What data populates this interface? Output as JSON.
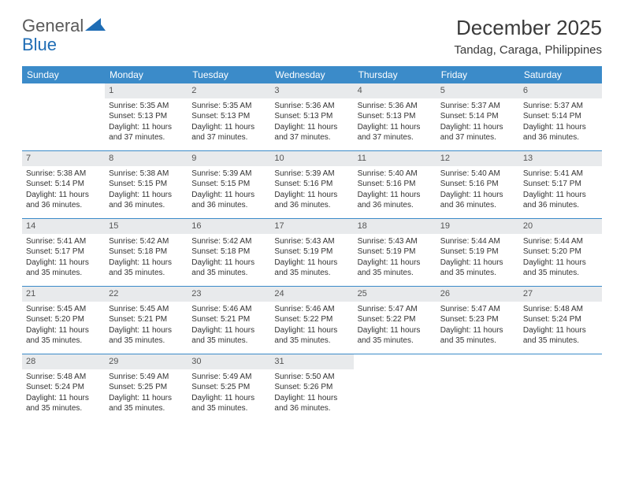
{
  "logo": {
    "text_left": "General",
    "text_right": "Blue"
  },
  "title": "December 2025",
  "location": "Tandag, Caraga, Philippines",
  "header_bg": "#3b8bc9",
  "header_fg": "#ffffff",
  "daynum_bg": "#e8eaec",
  "border_color": "#3b8bc9",
  "weekdays": [
    "Sunday",
    "Monday",
    "Tuesday",
    "Wednesday",
    "Thursday",
    "Friday",
    "Saturday"
  ],
  "start_offset": 1,
  "days": [
    {
      "n": 1,
      "sunrise": "5:35 AM",
      "sunset": "5:13 PM",
      "daylight": "11 hours and 37 minutes."
    },
    {
      "n": 2,
      "sunrise": "5:35 AM",
      "sunset": "5:13 PM",
      "daylight": "11 hours and 37 minutes."
    },
    {
      "n": 3,
      "sunrise": "5:36 AM",
      "sunset": "5:13 PM",
      "daylight": "11 hours and 37 minutes."
    },
    {
      "n": 4,
      "sunrise": "5:36 AM",
      "sunset": "5:13 PM",
      "daylight": "11 hours and 37 minutes."
    },
    {
      "n": 5,
      "sunrise": "5:37 AM",
      "sunset": "5:14 PM",
      "daylight": "11 hours and 37 minutes."
    },
    {
      "n": 6,
      "sunrise": "5:37 AM",
      "sunset": "5:14 PM",
      "daylight": "11 hours and 36 minutes."
    },
    {
      "n": 7,
      "sunrise": "5:38 AM",
      "sunset": "5:14 PM",
      "daylight": "11 hours and 36 minutes."
    },
    {
      "n": 8,
      "sunrise": "5:38 AM",
      "sunset": "5:15 PM",
      "daylight": "11 hours and 36 minutes."
    },
    {
      "n": 9,
      "sunrise": "5:39 AM",
      "sunset": "5:15 PM",
      "daylight": "11 hours and 36 minutes."
    },
    {
      "n": 10,
      "sunrise": "5:39 AM",
      "sunset": "5:16 PM",
      "daylight": "11 hours and 36 minutes."
    },
    {
      "n": 11,
      "sunrise": "5:40 AM",
      "sunset": "5:16 PM",
      "daylight": "11 hours and 36 minutes."
    },
    {
      "n": 12,
      "sunrise": "5:40 AM",
      "sunset": "5:16 PM",
      "daylight": "11 hours and 36 minutes."
    },
    {
      "n": 13,
      "sunrise": "5:41 AM",
      "sunset": "5:17 PM",
      "daylight": "11 hours and 36 minutes."
    },
    {
      "n": 14,
      "sunrise": "5:41 AM",
      "sunset": "5:17 PM",
      "daylight": "11 hours and 35 minutes."
    },
    {
      "n": 15,
      "sunrise": "5:42 AM",
      "sunset": "5:18 PM",
      "daylight": "11 hours and 35 minutes."
    },
    {
      "n": 16,
      "sunrise": "5:42 AM",
      "sunset": "5:18 PM",
      "daylight": "11 hours and 35 minutes."
    },
    {
      "n": 17,
      "sunrise": "5:43 AM",
      "sunset": "5:19 PM",
      "daylight": "11 hours and 35 minutes."
    },
    {
      "n": 18,
      "sunrise": "5:43 AM",
      "sunset": "5:19 PM",
      "daylight": "11 hours and 35 minutes."
    },
    {
      "n": 19,
      "sunrise": "5:44 AM",
      "sunset": "5:19 PM",
      "daylight": "11 hours and 35 minutes."
    },
    {
      "n": 20,
      "sunrise": "5:44 AM",
      "sunset": "5:20 PM",
      "daylight": "11 hours and 35 minutes."
    },
    {
      "n": 21,
      "sunrise": "5:45 AM",
      "sunset": "5:20 PM",
      "daylight": "11 hours and 35 minutes."
    },
    {
      "n": 22,
      "sunrise": "5:45 AM",
      "sunset": "5:21 PM",
      "daylight": "11 hours and 35 minutes."
    },
    {
      "n": 23,
      "sunrise": "5:46 AM",
      "sunset": "5:21 PM",
      "daylight": "11 hours and 35 minutes."
    },
    {
      "n": 24,
      "sunrise": "5:46 AM",
      "sunset": "5:22 PM",
      "daylight": "11 hours and 35 minutes."
    },
    {
      "n": 25,
      "sunrise": "5:47 AM",
      "sunset": "5:22 PM",
      "daylight": "11 hours and 35 minutes."
    },
    {
      "n": 26,
      "sunrise": "5:47 AM",
      "sunset": "5:23 PM",
      "daylight": "11 hours and 35 minutes."
    },
    {
      "n": 27,
      "sunrise": "5:48 AM",
      "sunset": "5:24 PM",
      "daylight": "11 hours and 35 minutes."
    },
    {
      "n": 28,
      "sunrise": "5:48 AM",
      "sunset": "5:24 PM",
      "daylight": "11 hours and 35 minutes."
    },
    {
      "n": 29,
      "sunrise": "5:49 AM",
      "sunset": "5:25 PM",
      "daylight": "11 hours and 35 minutes."
    },
    {
      "n": 30,
      "sunrise": "5:49 AM",
      "sunset": "5:25 PM",
      "daylight": "11 hours and 35 minutes."
    },
    {
      "n": 31,
      "sunrise": "5:50 AM",
      "sunset": "5:26 PM",
      "daylight": "11 hours and 36 minutes."
    }
  ],
  "labels": {
    "sunrise_prefix": "Sunrise: ",
    "sunset_prefix": "Sunset: ",
    "daylight_prefix": "Daylight: "
  }
}
